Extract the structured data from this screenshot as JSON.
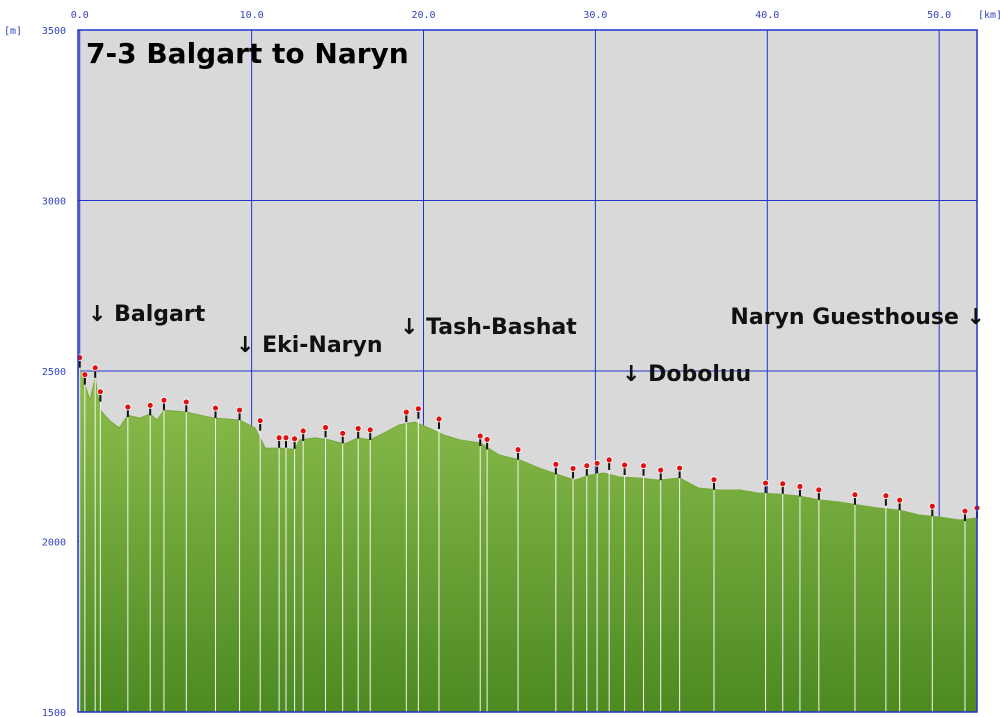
{
  "chart_data": {
    "type": "area",
    "title": "7-3 Balgart to Naryn",
    "x_unit": "[km]",
    "y_unit": "[m]",
    "color": "#76a83a",
    "grid": true,
    "xlim": [
      -0.1,
      52.2
    ],
    "ylim": [
      1500,
      3500
    ],
    "xticks": [
      {
        "value": 0,
        "label": "0.0"
      },
      {
        "value": 10,
        "label": "10.0"
      },
      {
        "value": 20,
        "label": "20.0"
      },
      {
        "value": 30,
        "label": "30.0"
      },
      {
        "value": 40,
        "label": "40.0"
      },
      {
        "value": 50,
        "label": "50.0"
      }
    ],
    "yticks": [
      1500,
      2000,
      2500,
      3000,
      3500
    ],
    "x": [
      0.0,
      0.3,
      0.6,
      0.9,
      1.2,
      1.7,
      2.3,
      2.8,
      3.5,
      4.1,
      4.5,
      4.9,
      6.1,
      7.8,
      9.3,
      10.2,
      10.8,
      11.6,
      12.5,
      12.8,
      13.7,
      14.5,
      15.4,
      16.2,
      16.9,
      17.7,
      18.6,
      19.5,
      20.3,
      21.2,
      22.1,
      23.3,
      24.4,
      25.6,
      26.7,
      27.9,
      28.8,
      29.7,
      30.5,
      31.4,
      32.6,
      33.7,
      34.9,
      36.0,
      37.2,
      38.4,
      39.5,
      40.7,
      41.9,
      43.0,
      44.2,
      45.3,
      46.5,
      47.7,
      48.8,
      50.0,
      51.2,
      52.2
    ],
    "values": [
      2510,
      2459,
      2415,
      2480,
      2385,
      2356,
      2333,
      2370,
      2362,
      2374,
      2356,
      2385,
      2380,
      2362,
      2356,
      2333,
      2274,
      2274,
      2270,
      2298,
      2304,
      2298,
      2286,
      2304,
      2298,
      2318,
      2342,
      2350,
      2333,
      2312,
      2298,
      2289,
      2254,
      2239,
      2216,
      2195,
      2180,
      2195,
      2201,
      2189,
      2186,
      2180,
      2186,
      2157,
      2151,
      2151,
      2142,
      2139,
      2133,
      2122,
      2116,
      2107,
      2098,
      2092,
      2078,
      2072,
      2063,
      2069
    ],
    "waypoints": {
      "color": "#e01010",
      "x": [
        0.0,
        0.3,
        0.9,
        1.2,
        2.8,
        4.1,
        4.9,
        6.2,
        7.9,
        9.3,
        10.5,
        11.6,
        12.0,
        12.5,
        13.0,
        14.3,
        15.3,
        16.2,
        16.9,
        19.0,
        19.7,
        20.9,
        23.3,
        23.7,
        25.5,
        27.7,
        28.7,
        29.5,
        30.1,
        30.8,
        31.7,
        32.8,
        33.8,
        34.9,
        36.9,
        39.9,
        40.9,
        41.9,
        43.0,
        45.1,
        46.9,
        47.7,
        49.6,
        51.5,
        52.2
      ],
      "values": [
        2510,
        2460,
        2480,
        2410,
        2365,
        2370,
        2385,
        2380,
        2362,
        2356,
        2325,
        2275,
        2275,
        2272,
        2295,
        2305,
        2288,
        2302,
        2298,
        2350,
        2360,
        2330,
        2280,
        2270,
        2240,
        2197,
        2185,
        2193,
        2200,
        2210,
        2195,
        2193,
        2180,
        2186,
        2152,
        2142,
        2140,
        2132,
        2122,
        2108,
        2105,
        2092,
        2074,
        2060,
        2069
      ]
    },
    "annotations": [
      "↓ Balgart",
      "↓ Eki-Naryn",
      "↓ Tash-Bashat",
      "↓ Doboluu",
      "Naryn Guesthouse ↓"
    ]
  }
}
